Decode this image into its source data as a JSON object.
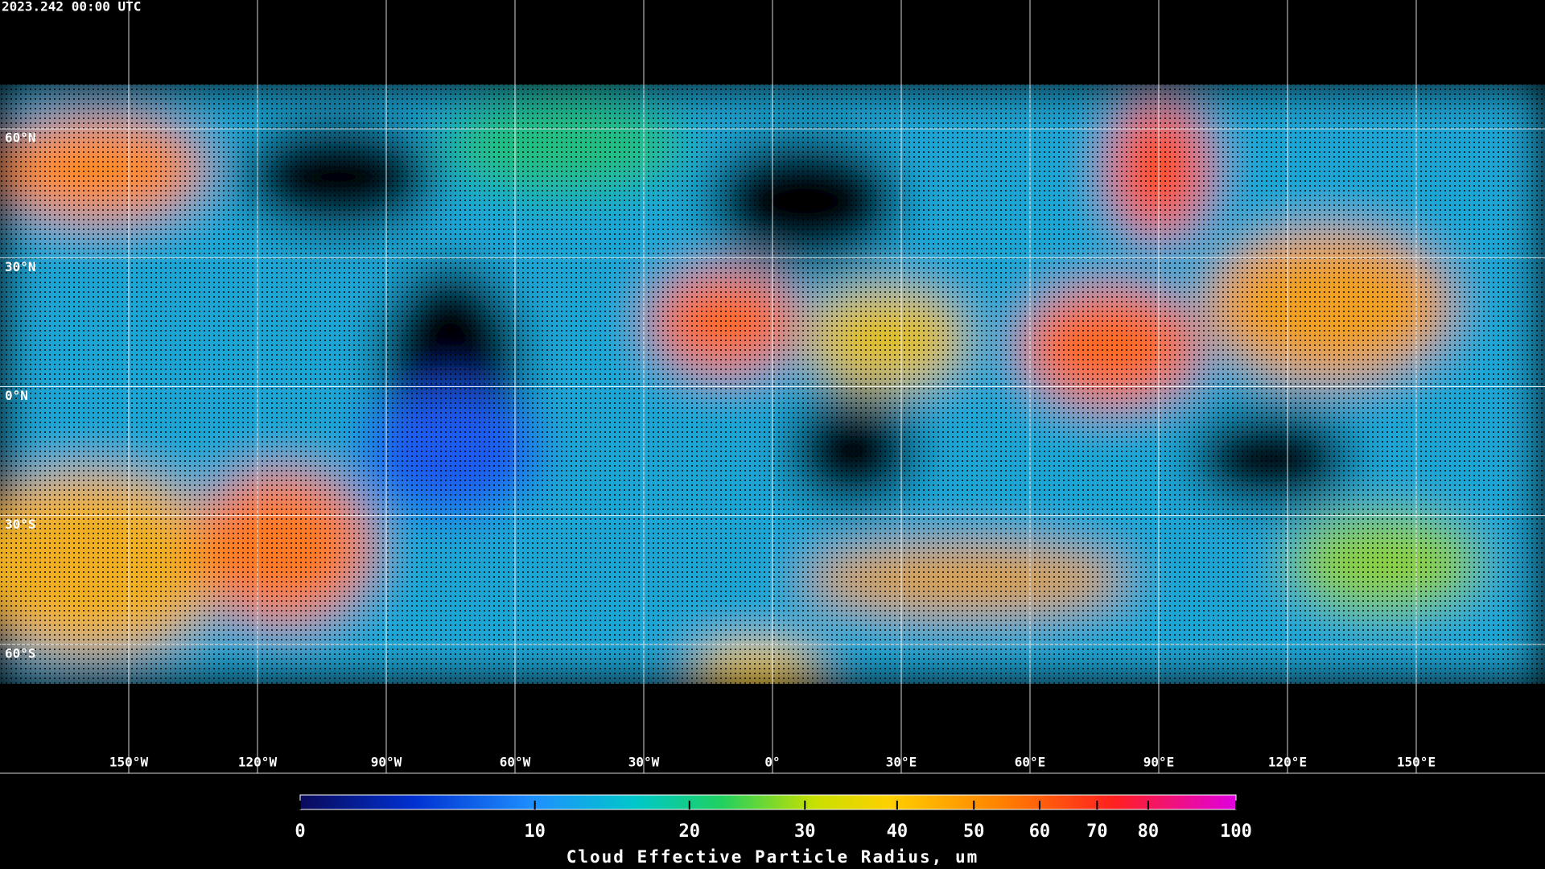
{
  "timestamp": "2023.242 00:00 UTC",
  "map": {
    "xlim": [
      -180,
      180
    ],
    "ylim": [
      -90,
      90
    ],
    "lon_ticks": [
      {
        "value": -150,
        "label": "150°W"
      },
      {
        "value": -120,
        "label": "120°W"
      },
      {
        "value": -90,
        "label": "90°W"
      },
      {
        "value": -60,
        "label": "60°W"
      },
      {
        "value": -30,
        "label": "30°W"
      },
      {
        "value": 0,
        "label": "0°"
      },
      {
        "value": 30,
        "label": "30°E"
      },
      {
        "value": 60,
        "label": "60°E"
      },
      {
        "value": 90,
        "label": "90°E"
      },
      {
        "value": 120,
        "label": "120°E"
      },
      {
        "value": 150,
        "label": "150°E"
      }
    ],
    "lat_ticks": [
      {
        "value": 60,
        "label": "60°N"
      },
      {
        "value": 30,
        "label": "30°N"
      },
      {
        "value": 0,
        "label": "0°N"
      },
      {
        "value": -30,
        "label": "30°S"
      },
      {
        "value": -60,
        "label": "60°S"
      }
    ]
  },
  "colorbar": {
    "label": "Cloud Effective Particle Radius, um",
    "lim": [
      0,
      100
    ],
    "ticks": [
      0,
      10,
      20,
      30,
      40,
      50,
      60,
      70,
      80,
      100
    ]
  }
}
